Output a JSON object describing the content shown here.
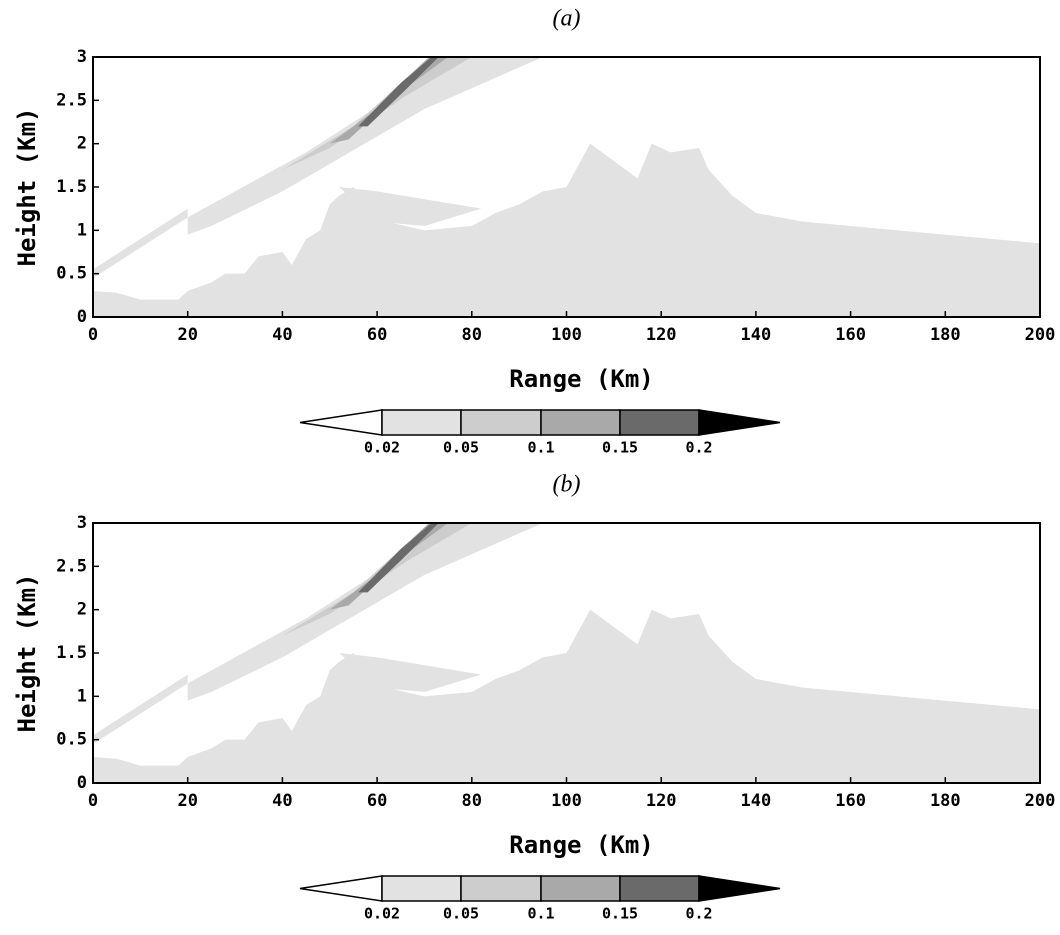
{
  "chart_data": [
    {
      "type": "contour",
      "title": "(a)",
      "xlabel": "Range (Km)",
      "ylabel": "Height (Km)",
      "xlim": [
        0,
        200
      ],
      "ylim": [
        0,
        3
      ],
      "xticks": [
        0,
        20,
        40,
        60,
        80,
        100,
        120,
        140,
        160,
        180,
        200
      ],
      "yticks": [
        0,
        0.5,
        1,
        1.5,
        2,
        2.5,
        3
      ],
      "levels": [
        0.02,
        0.05,
        0.1,
        0.15,
        0.2
      ],
      "colors": [
        "#ffffff",
        "#e2e2e2",
        "#cdcdcd",
        "#a9a9a9",
        "#6a6a6a",
        "#000000"
      ]
    },
    {
      "type": "contour",
      "title": "(b)",
      "xlabel": "Range (Km)",
      "ylabel": "Height (Km)",
      "xlim": [
        0,
        200
      ],
      "ylim": [
        0,
        3
      ],
      "xticks": [
        0,
        20,
        40,
        60,
        80,
        100,
        120,
        140,
        160,
        180,
        200
      ],
      "yticks": [
        0,
        0.5,
        1,
        1.5,
        2,
        2.5,
        3
      ],
      "levels": [
        0.02,
        0.05,
        0.1,
        0.15,
        0.2
      ],
      "colors": [
        "#ffffff",
        "#e2e2e2",
        "#cdcdcd",
        "#a9a9a9",
        "#6a6a6a",
        "#000000"
      ]
    }
  ]
}
